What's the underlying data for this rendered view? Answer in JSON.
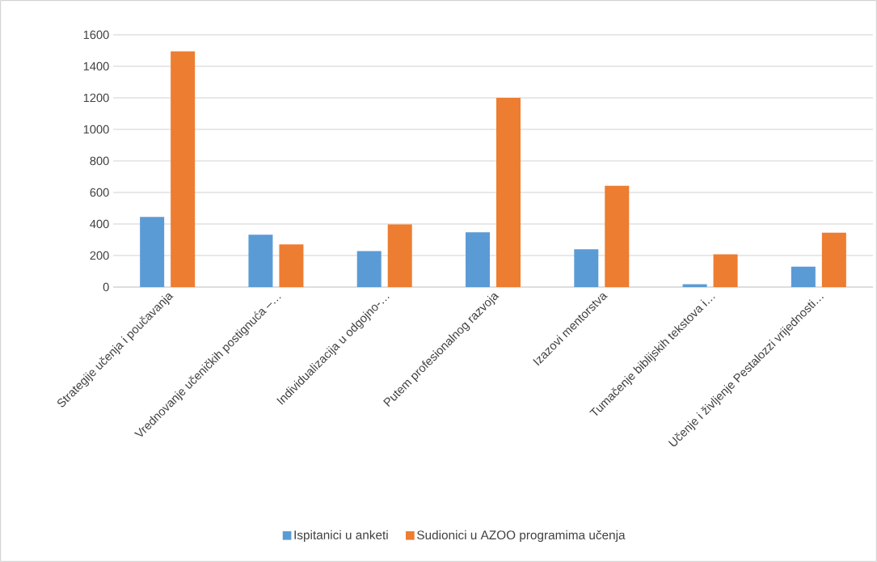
{
  "chart_data": {
    "type": "bar",
    "categories": [
      "Strategije učenja i poučavanja",
      "Vrednovanje učeničkih postignuća –…",
      "Individualizacija u odgojno-…",
      "Putem profesionalnog razvoja",
      "Izazovi mentorstva",
      "Tumačenje biblijskih tekstova i…",
      "Učenje i življenje Pestalozzi vrijednosti…"
    ],
    "series": [
      {
        "name": "Ispitanici u anketi",
        "color": "#5b9bd5",
        "values": [
          445,
          332,
          228,
          347,
          240,
          18,
          129
        ]
      },
      {
        "name": "Sudionici u AZOO programima učenja",
        "color": "#ed7d31",
        "values": [
          1495,
          270,
          398,
          1200,
          642,
          207,
          345
        ]
      }
    ],
    "ylim": [
      0,
      1600
    ],
    "yticks": [
      0,
      200,
      400,
      600,
      800,
      1000,
      1200,
      1400,
      1600
    ],
    "grid": "y",
    "legend": "bottom"
  }
}
